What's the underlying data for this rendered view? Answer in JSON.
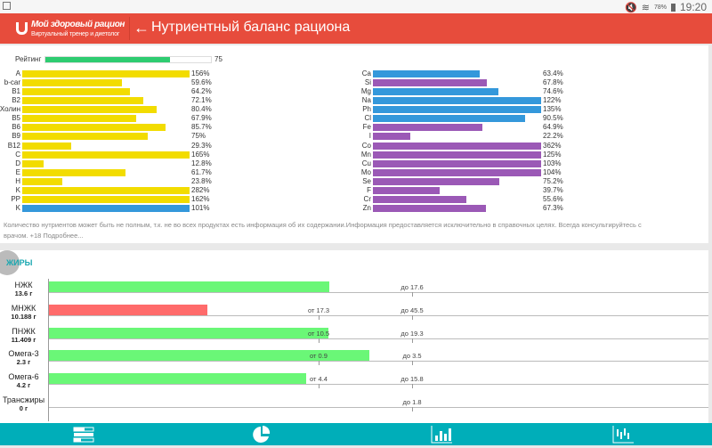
{
  "status_bar": {
    "battery": "78%",
    "time": "19:20"
  },
  "header": {
    "logo_title": "Мой здоровый рацион",
    "logo_subtitle": "Виртуальный тренер и диетолог",
    "back_icon": "arrow-left-icon",
    "title": "Нутриентный баланс рациона"
  },
  "rating": {
    "label": "Рейтинг",
    "value": 75,
    "value_text": "75"
  },
  "vitamins": [
    {
      "label": "A",
      "value": 156,
      "text": "156%",
      "color": "#f2dc00"
    },
    {
      "label": "b-car",
      "value": 59.6,
      "text": "59.6%",
      "color": "#f2dc00"
    },
    {
      "label": "B1",
      "value": 64.2,
      "text": "64.2%",
      "color": "#f2dc00"
    },
    {
      "label": "B2",
      "value": 72.1,
      "text": "72.1%",
      "color": "#f2dc00"
    },
    {
      "label": "Холин",
      "value": 80.4,
      "text": "80.4%",
      "color": "#f2dc00"
    },
    {
      "label": "B5",
      "value": 67.9,
      "text": "67.9%",
      "color": "#f2dc00"
    },
    {
      "label": "B6",
      "value": 85.7,
      "text": "85.7%",
      "color": "#f2dc00"
    },
    {
      "label": "B9",
      "value": 75,
      "text": "75%",
      "color": "#f2dc00"
    },
    {
      "label": "B12",
      "value": 29.3,
      "text": "29.3%",
      "color": "#f2dc00"
    },
    {
      "label": "C",
      "value": 165,
      "text": "165%",
      "color": "#f2dc00"
    },
    {
      "label": "D",
      "value": 12.8,
      "text": "12.8%",
      "color": "#f2dc00"
    },
    {
      "label": "E",
      "value": 61.7,
      "text": "61.7%",
      "color": "#f2dc00"
    },
    {
      "label": "H",
      "value": 23.8,
      "text": "23.8%",
      "color": "#f2dc00"
    },
    {
      "label": "K",
      "value": 282,
      "text": "282%",
      "color": "#f2dc00"
    },
    {
      "label": "PP",
      "value": 162,
      "text": "162%",
      "color": "#f2dc00"
    },
    {
      "label": "K",
      "value": 101,
      "text": "101%",
      "color": "#3498db"
    }
  ],
  "minerals": [
    {
      "label": "Ca",
      "value": 63.4,
      "text": "63.4%",
      "color": "#3498db"
    },
    {
      "label": "Si",
      "value": 67.8,
      "text": "67.8%",
      "color": "#9b59b6"
    },
    {
      "label": "Mg",
      "value": 74.6,
      "text": "74.6%",
      "color": "#3498db"
    },
    {
      "label": "Na",
      "value": 122,
      "text": "122%",
      "color": "#3498db"
    },
    {
      "label": "Ph",
      "value": 135,
      "text": "135%",
      "color": "#3498db"
    },
    {
      "label": "Cl",
      "value": 90.5,
      "text": "90.5%",
      "color": "#3498db"
    },
    {
      "label": "Fe",
      "value": 64.9,
      "text": "64.9%",
      "color": "#9b59b6"
    },
    {
      "label": "I",
      "value": 22.2,
      "text": "22.2%",
      "color": "#9b59b6"
    },
    {
      "label": "Co",
      "value": 362,
      "text": "362%",
      "color": "#9b59b6"
    },
    {
      "label": "Mn",
      "value": 125,
      "text": "125%",
      "color": "#9b59b6"
    },
    {
      "label": "Cu",
      "value": 103,
      "text": "103%",
      "color": "#9b59b6"
    },
    {
      "label": "Mo",
      "value": 104,
      "text": "104%",
      "color": "#9b59b6"
    },
    {
      "label": "Se",
      "value": 75.2,
      "text": "75.2%",
      "color": "#9b59b6"
    },
    {
      "label": "F",
      "value": 39.7,
      "text": "39.7%",
      "color": "#9b59b6"
    },
    {
      "label": "Cr",
      "value": 55.6,
      "text": "55.6%",
      "color": "#9b59b6"
    },
    {
      "label": "Zn",
      "value": 67.3,
      "text": "67.3%",
      "color": "#9b59b6"
    }
  ],
  "note": "Количество нутриентов может быть не полным, т.к. не во всех продуктах есть информация об их содержании.Информация предоставляется исключительно в справочных целях. Всегда консультируйтесь с врачом. +18 Подробнее...",
  "fats": {
    "title": "ЖИРЫ",
    "rows": [
      {
        "label": "НЖК",
        "amount": "13.6 г",
        "value": 13.6,
        "min": null,
        "max": 17.6,
        "min_text": "",
        "max_text": "до 17.6",
        "color": "#6af777"
      },
      {
        "label": "МНЖК",
        "amount": "10.188 г",
        "value": 10.188,
        "min": 17.3,
        "max": 45.5,
        "min_text": "от 17.3",
        "max_text": "до 45.5",
        "color": "#ff6b6b"
      },
      {
        "label": "ПНЖК",
        "amount": "11.409 г",
        "value": 11.409,
        "min": 10.5,
        "max": 19.3,
        "min_text": "от 10.5",
        "max_text": "до 19.3",
        "color": "#6af777"
      },
      {
        "label": "Омега-3",
        "amount": "2.3 г",
        "value": 2.3,
        "min": 0.9,
        "max": 3.5,
        "min_text": "от 0.9",
        "max_text": "до 3.5",
        "color": "#6af777"
      },
      {
        "label": "Омега-6",
        "amount": "4.2 г",
        "value": 4.2,
        "min": 4.4,
        "max": 15.8,
        "min_text": "от 4.4",
        "max_text": "до 15.8",
        "color": "#6af777"
      },
      {
        "label": "Трансжиры",
        "amount": "0 г",
        "value": 0,
        "min": null,
        "max": 1.8,
        "min_text": "",
        "max_text": "до 1.8",
        "color": "#6af777"
      }
    ]
  },
  "bottom_nav": [
    "balance-bars-icon",
    "pie-chart-icon",
    "bar-chart-icon",
    "waveform-chart-icon"
  ]
}
